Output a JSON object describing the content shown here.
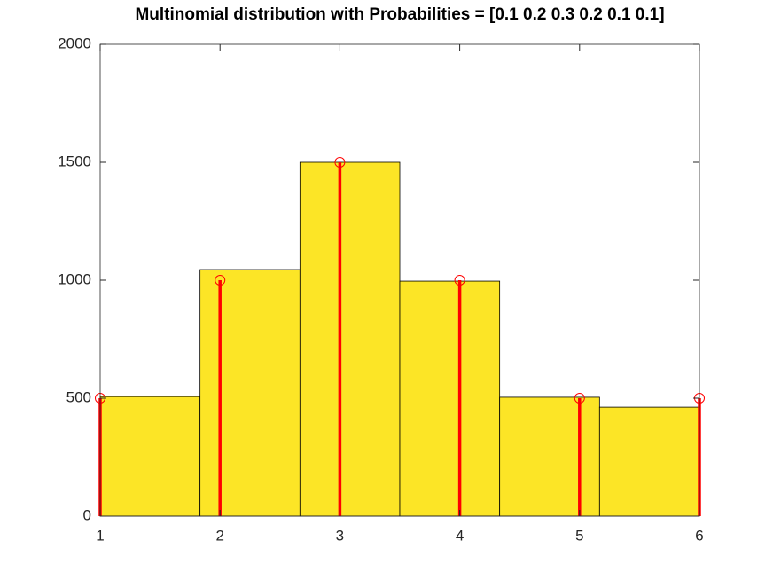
{
  "chart_data": {
    "type": "histogram",
    "title": "Multinomial distribution with Probabilities = [0.1 0.2 0.3 0.2 0.1 0.1]",
    "bins": [
      1,
      1.8333,
      2.6667,
      3.5,
      4.3333,
      5.1667,
      6
    ],
    "counts": [
      507,
      1045,
      1500,
      996,
      504,
      462
    ],
    "color": "#fce526",
    "stems": {
      "x": [
        1,
        2,
        3,
        4,
        5,
        6
      ],
      "values": [
        500,
        1000,
        1500,
        1000,
        500,
        500
      ],
      "color": "#ff0000"
    },
    "xlim": [
      1,
      6
    ],
    "xticks": [
      1,
      2,
      3,
      4,
      5,
      6
    ],
    "ylim": [
      0,
      2000
    ],
    "yticks": [
      0,
      500,
      1000,
      1500,
      2000
    ],
    "grid": false
  }
}
